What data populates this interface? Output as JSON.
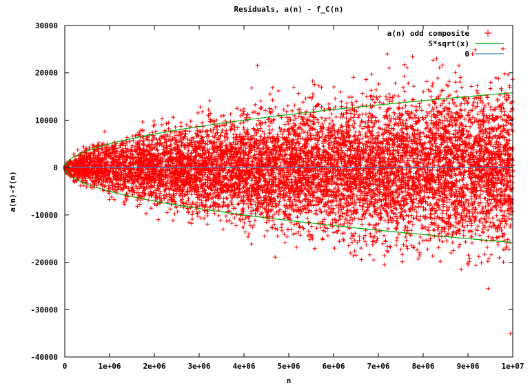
{
  "chart_data": {
    "type": "scatter",
    "title": "Residuals, a(n) - f_C(n)",
    "xlabel": "n",
    "ylabel": "a(n)-f(n)",
    "xlim": [
      0,
      10000000
    ],
    "ylim": [
      -40000,
      30000
    ],
    "x_ticks": [
      0,
      1000000,
      2000000,
      3000000,
      4000000,
      5000000,
      6000000,
      7000000,
      8000000,
      9000000,
      10000000
    ],
    "x_tick_labels": [
      "0",
      "1e+06",
      "2e+06",
      "3e+06",
      "4e+06",
      "5e+06",
      "6e+06",
      "7e+06",
      "8e+06",
      "9e+06",
      "1e+07"
    ],
    "y_ticks": [
      -40000,
      -30000,
      -20000,
      -10000,
      0,
      10000,
      20000,
      30000
    ],
    "y_tick_labels": [
      "-40000",
      "-30000",
      "-20000",
      "-10000",
      "0",
      "10000",
      "20000",
      "30000"
    ],
    "grid": false,
    "legend_position": "top-right",
    "series": [
      {
        "name": "a(n) odd composite",
        "kind": "scatter",
        "marker": "+",
        "color": "#ff0000",
        "envelope": "within approximately ±5*sqrt(n), dense red band spanning the full x range",
        "notable_outliers": [
          {
            "x": 4300000,
            "y": 21500
          },
          {
            "x": 6500000,
            "y": -18500
          },
          {
            "x": 6900000,
            "y": -19500
          },
          {
            "x": 7200000,
            "y": 24000
          },
          {
            "x": 8300000,
            "y": 23000
          },
          {
            "x": 8800000,
            "y": 21500
          },
          {
            "x": 9100000,
            "y": 24000
          },
          {
            "x": 9700000,
            "y": -19000
          },
          {
            "x": 9950000,
            "y": -35000
          }
        ]
      },
      {
        "name": "5*sqrt(x)",
        "kind": "line",
        "color": "#00aa00",
        "formula": "±5*sqrt(x)"
      },
      {
        "name": "0",
        "kind": "line",
        "color": "#3a7fc4",
        "formula": "y = 0"
      }
    ]
  }
}
